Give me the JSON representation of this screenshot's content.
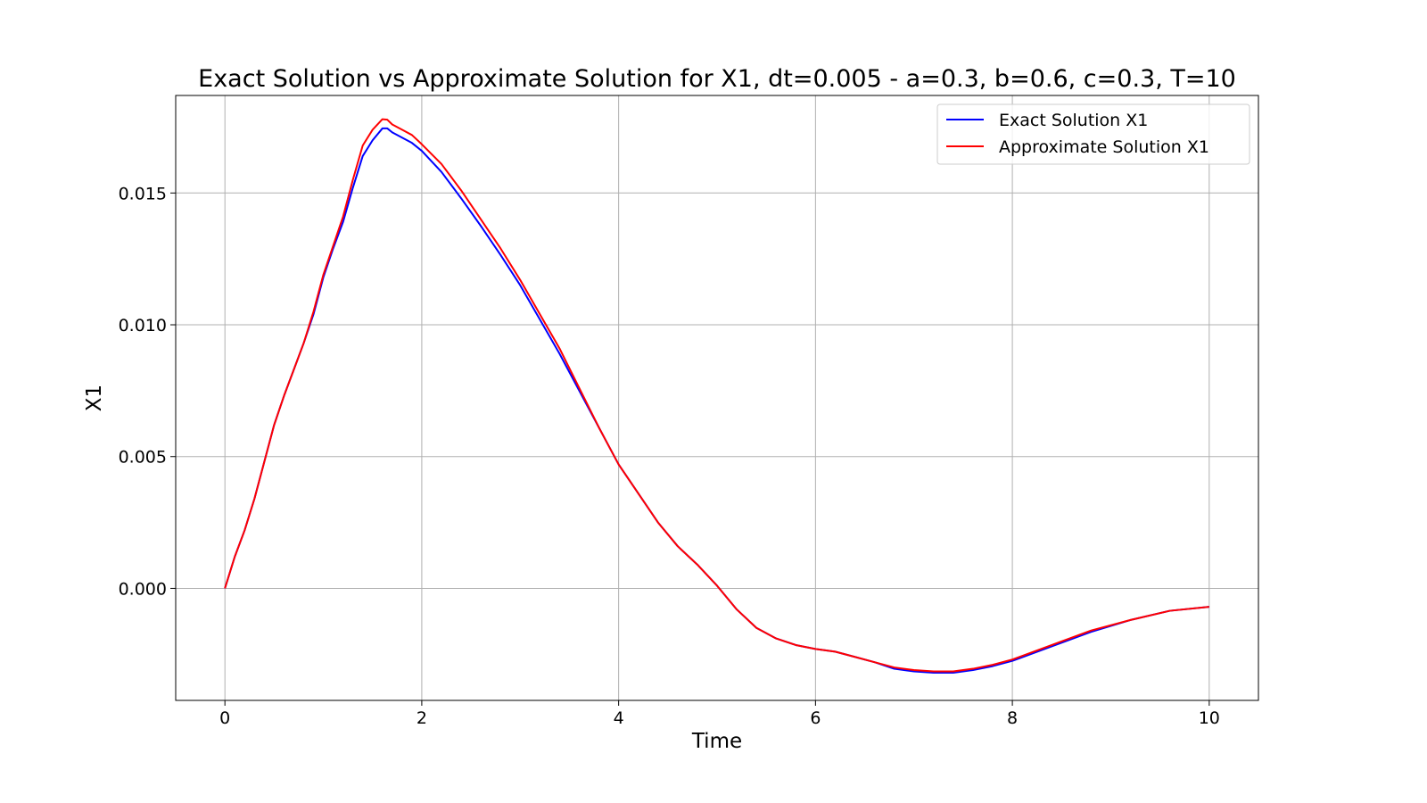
{
  "chart_data": {
    "type": "line",
    "title": "Exact Solution vs Approximate Solution for X1, dt=0.005 - a=0.3, b=0.6, c=0.3, T=10",
    "xlabel": "Time",
    "ylabel": "X1",
    "xlim": [
      -0.5,
      10.5
    ],
    "ylim": [
      -0.00425,
      0.0187
    ],
    "xticks": [
      0,
      2,
      4,
      6,
      8,
      10
    ],
    "xtick_labels": [
      "0",
      "2",
      "4",
      "6",
      "8",
      "10"
    ],
    "yticks": [
      0.0,
      0.005,
      0.01,
      0.015
    ],
    "ytick_labels": [
      "0.000",
      "0.005",
      "0.010",
      "0.015"
    ],
    "grid": true,
    "legend_position": "top-right",
    "series": [
      {
        "name": "Exact Solution X1",
        "color": "#0000ff",
        "x": [
          0,
          0.1,
          0.2,
          0.3,
          0.4,
          0.5,
          0.6,
          0.7,
          0.8,
          0.9,
          1.0,
          1.1,
          1.2,
          1.3,
          1.4,
          1.5,
          1.6,
          1.65,
          1.7,
          1.8,
          1.9,
          2.0,
          2.2,
          2.4,
          2.6,
          2.8,
          3.0,
          3.2,
          3.4,
          3.6,
          3.8,
          3.9,
          4.0,
          4.2,
          4.4,
          4.6,
          4.8,
          5.0,
          5.2,
          5.4,
          5.6,
          5.8,
          6.0,
          6.2,
          6.4,
          6.6,
          6.8,
          7.0,
          7.2,
          7.4,
          7.6,
          7.8,
          8.0,
          8.4,
          8.8,
          9.2,
          9.6,
          10.0
        ],
        "values": [
          0.0,
          0.0012,
          0.0022,
          0.0034,
          0.0048,
          0.0062,
          0.0073,
          0.0083,
          0.0093,
          0.0104,
          0.0118,
          0.0129,
          0.0139,
          0.0152,
          0.0164,
          0.017,
          0.01745,
          0.01745,
          0.0173,
          0.0171,
          0.0169,
          0.0166,
          0.0158,
          0.0148,
          0.01375,
          0.01265,
          0.0115,
          0.0102,
          0.0089,
          0.0075,
          0.0061,
          0.0054,
          0.0047,
          0.0036,
          0.0025,
          0.0016,
          0.0009,
          0.0001,
          -0.0008,
          -0.0015,
          -0.0019,
          -0.00215,
          -0.0023,
          -0.0024,
          -0.0026,
          -0.0028,
          -0.00305,
          -0.00315,
          -0.0032,
          -0.0032,
          -0.0031,
          -0.00295,
          -0.00275,
          -0.0022,
          -0.00165,
          -0.0012,
          -0.00085,
          -0.0007
        ]
      },
      {
        "name": "Approximate Solution X1",
        "color": "#ff0000",
        "x": [
          0,
          0.1,
          0.2,
          0.3,
          0.4,
          0.5,
          0.6,
          0.7,
          0.8,
          0.9,
          1.0,
          1.1,
          1.2,
          1.3,
          1.4,
          1.5,
          1.6,
          1.65,
          1.7,
          1.8,
          1.9,
          2.0,
          2.2,
          2.4,
          2.6,
          2.8,
          3.0,
          3.2,
          3.4,
          3.6,
          3.8,
          3.9,
          4.0,
          4.2,
          4.4,
          4.6,
          4.8,
          5.0,
          5.2,
          5.4,
          5.6,
          5.8,
          6.0,
          6.2,
          6.4,
          6.6,
          6.8,
          7.0,
          7.2,
          7.4,
          7.6,
          7.8,
          8.0,
          8.4,
          8.8,
          9.2,
          9.6,
          10.0
        ],
        "values": [
          0.0,
          0.0012,
          0.0022,
          0.0034,
          0.0048,
          0.0062,
          0.0073,
          0.0083,
          0.0093,
          0.0105,
          0.0119,
          0.013,
          0.0141,
          0.0155,
          0.0168,
          0.0174,
          0.0178,
          0.01778,
          0.0176,
          0.0174,
          0.0172,
          0.01685,
          0.0161,
          0.0151,
          0.014,
          0.0129,
          0.0117,
          0.0104,
          0.0091,
          0.0076,
          0.0061,
          0.0054,
          0.0047,
          0.0036,
          0.0025,
          0.0016,
          0.0009,
          0.0001,
          -0.0008,
          -0.0015,
          -0.0019,
          -0.00215,
          -0.0023,
          -0.0024,
          -0.0026,
          -0.0028,
          -0.003,
          -0.0031,
          -0.00315,
          -0.00315,
          -0.00305,
          -0.0029,
          -0.0027,
          -0.00215,
          -0.0016,
          -0.0012,
          -0.00085,
          -0.0007
        ]
      }
    ]
  }
}
